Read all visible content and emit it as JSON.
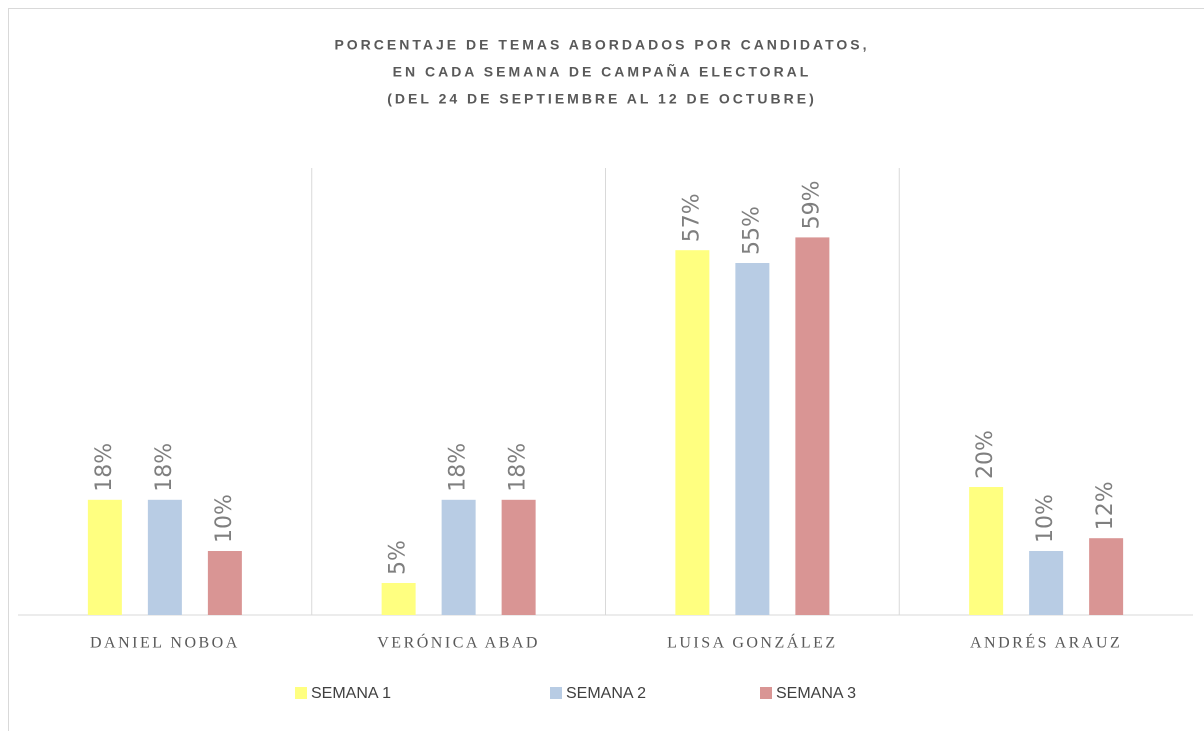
{
  "chart_data": {
    "type": "bar",
    "title": [
      "PORCENTAJE DE TEMAS ABORDADOS POR CANDIDATOS,",
      "EN CADA SEMANA DE CAMPAÑA ELECTORAL",
      "(DEL 24 DE SEPTIEMBRE AL 12 DE OCTUBRE)"
    ],
    "categories": [
      "DANIEL NOBOA",
      "VERÓNICA ABAD",
      "LUISA GONZÁLEZ",
      "ANDRÉS ARAUZ"
    ],
    "series": [
      {
        "name": "SEMANA 1",
        "color": "#ffff80",
        "values": [
          18,
          5,
          57,
          20
        ],
        "value_labels": [
          "18%",
          "5%",
          "57%",
          "20%"
        ]
      },
      {
        "name": "SEMANA 2",
        "color": "#b8cce4",
        "values": [
          18,
          18,
          55,
          10
        ],
        "value_labels": [
          "18%",
          "18%",
          "55%",
          "10%"
        ]
      },
      {
        "name": "SEMANA 3",
        "color": "#d99594",
        "values": [
          10,
          18,
          59,
          12
        ],
        "value_labels": [
          "10%",
          "18%",
          "59%",
          "12%"
        ]
      }
    ],
    "legend": "bottom",
    "grid": false
  }
}
